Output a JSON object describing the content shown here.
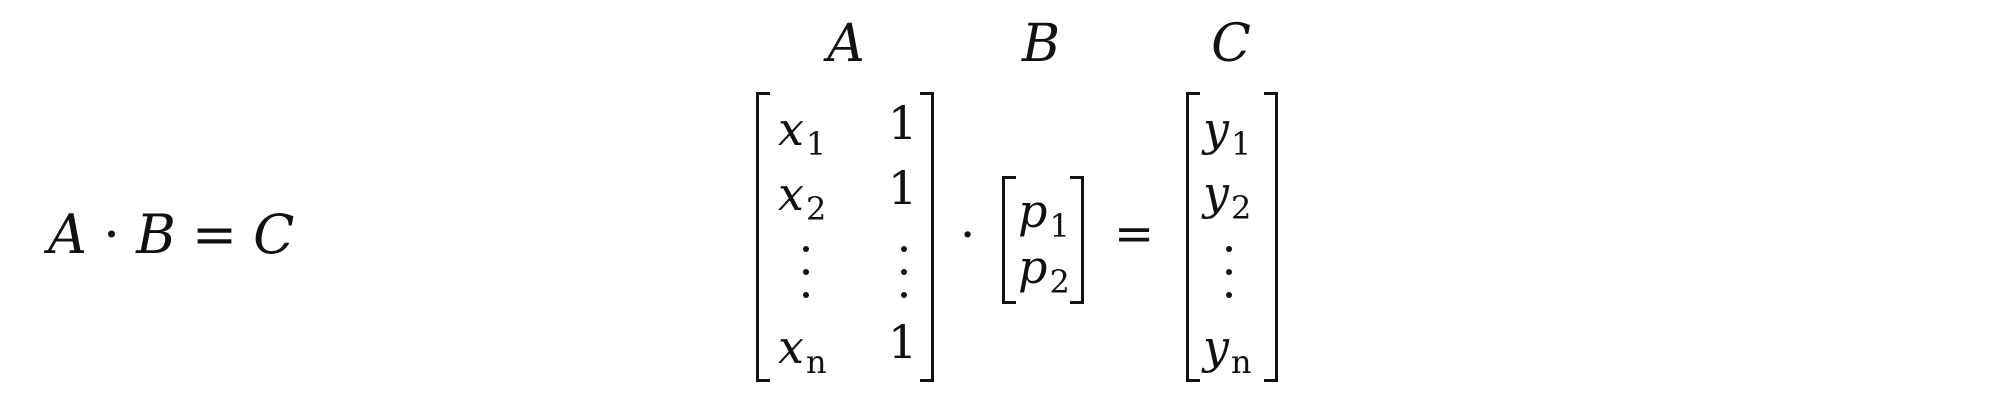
{
  "left_equation": {
    "a": "A",
    "dot": "·",
    "b": "B",
    "equals": "=",
    "c": "C"
  },
  "labels": {
    "a": "A",
    "b": "B",
    "c": "C"
  },
  "matrix_a": {
    "rows": [
      {
        "x_var": "x",
        "x_sub": "1",
        "one": "1"
      },
      {
        "x_var": "x",
        "x_sub": "2",
        "one": "1"
      },
      {
        "x_var": "x",
        "x_sub": "n",
        "one": "1"
      }
    ]
  },
  "matrix_b": {
    "rows": [
      {
        "var": "p",
        "sub": "1"
      },
      {
        "var": "p",
        "sub": "2"
      }
    ]
  },
  "matrix_c": {
    "rows": [
      {
        "var": "y",
        "sub": "1"
      },
      {
        "var": "y",
        "sub": "2"
      },
      {
        "var": "y",
        "sub": "n"
      }
    ]
  },
  "operators": {
    "dot": "·",
    "equals": "="
  }
}
